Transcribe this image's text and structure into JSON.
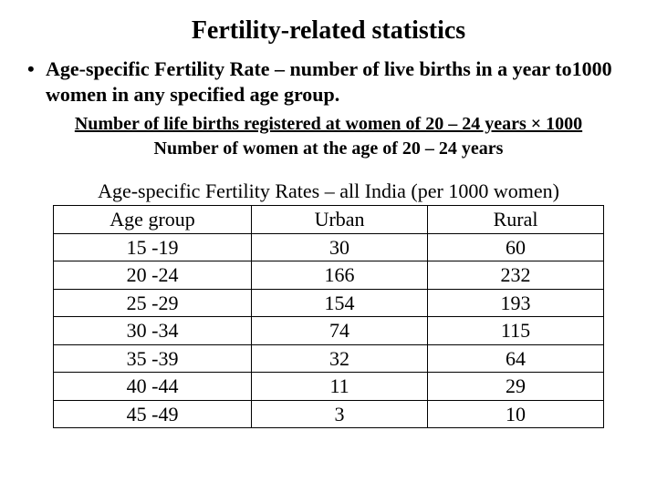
{
  "title": "Fertility-related statistics",
  "bullet": {
    "marker": "•",
    "text": "Age-specific Fertility Rate – number of live births in a year to1000 women in any specified age group."
  },
  "formula": {
    "numerator": "Number of life births registered at women of 20 – 24 years × 1000",
    "denominator": "Number of women at the age of 20 – 24 years"
  },
  "table": {
    "caption": "Age-specific Fertility Rates – all India (per 1000 women)",
    "columns": [
      "Age group",
      "Urban",
      "Rural"
    ],
    "rows": [
      [
        "15 -19",
        "30",
        "60"
      ],
      [
        "20 -24",
        "166",
        "232"
      ],
      [
        "25 -29",
        "154",
        "193"
      ],
      [
        "30 -34",
        "74",
        "115"
      ],
      [
        "35 -39",
        "32",
        "64"
      ],
      [
        "40 -44",
        "11",
        "29"
      ],
      [
        "45 -49",
        "3",
        "10"
      ]
    ],
    "border_color": "#000000",
    "cell_fontsize": 22
  },
  "background_color": "#ffffff",
  "text_color": "#000000"
}
